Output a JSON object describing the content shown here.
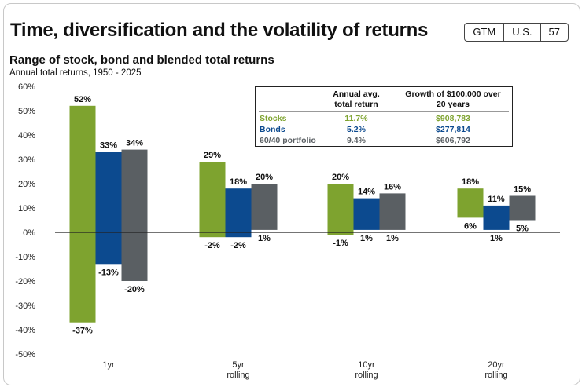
{
  "header": {
    "title": "Time, diversification and the volatility of returns",
    "badge": [
      "GTM",
      "U.S.",
      "57"
    ]
  },
  "chart_data": {
    "type": "bar",
    "title": "Range of stock, bond and blended total returns",
    "subtitle": "Annual total returns, 1950 - 2025",
    "categories": [
      [
        "1yr"
      ],
      [
        "5yr",
        "rolling"
      ],
      [
        "10yr",
        "rolling"
      ],
      [
        "20yr",
        "rolling"
      ]
    ],
    "ylim": [
      -50,
      60
    ],
    "yticks": [
      60,
      50,
      40,
      30,
      20,
      10,
      0,
      -10,
      -20,
      -30,
      -40,
      -50
    ],
    "ytick_labels": [
      "60%",
      "50%",
      "40%",
      "30%",
      "20%",
      "10%",
      "0%",
      "-10%",
      "-20%",
      "-30%",
      "-40%",
      "-50%"
    ],
    "series": [
      {
        "name": "Stocks",
        "color": "#7ea32f",
        "max": [
          52,
          29,
          20,
          18
        ],
        "min": [
          -37,
          -2,
          -1,
          6
        ],
        "max_labels": [
          "52%",
          "29%",
          "20%",
          "18%"
        ],
        "min_labels": [
          "-37%",
          "-2%",
          "-1%",
          "6%"
        ]
      },
      {
        "name": "Bonds",
        "color": "#0c4a8f",
        "max": [
          33,
          18,
          14,
          11
        ],
        "min": [
          -13,
          -2,
          1,
          1
        ],
        "max_labels": [
          "33%",
          "18%",
          "14%",
          "11%"
        ],
        "min_labels": [
          "-13%",
          "-2%",
          "1%",
          "1%"
        ]
      },
      {
        "name": "60/40 portfolio",
        "color": "#5a5f63",
        "max": [
          34,
          20,
          16,
          15
        ],
        "min": [
          -20,
          1,
          1,
          5
        ],
        "max_labels": [
          "34%",
          "20%",
          "16%",
          "15%"
        ],
        "min_labels": [
          "-20%",
          "1%",
          "1%",
          "5%"
        ]
      }
    ]
  },
  "summary_table": {
    "headers": [
      [
        "Annual avg.",
        "total return"
      ],
      [
        "Growth of $100,000 over",
        "20 years"
      ]
    ],
    "rows": [
      {
        "name": "Stocks",
        "avg": "11.7%",
        "growth": "$908,783",
        "color": "#7ea32f"
      },
      {
        "name": "Bonds",
        "avg": "5.2%",
        "growth": "$277,814",
        "color": "#0c4a8f"
      },
      {
        "name": "60/40 portfolio",
        "avg": "9.4%",
        "growth": "$606,792",
        "color": "#5a5f63"
      }
    ]
  }
}
